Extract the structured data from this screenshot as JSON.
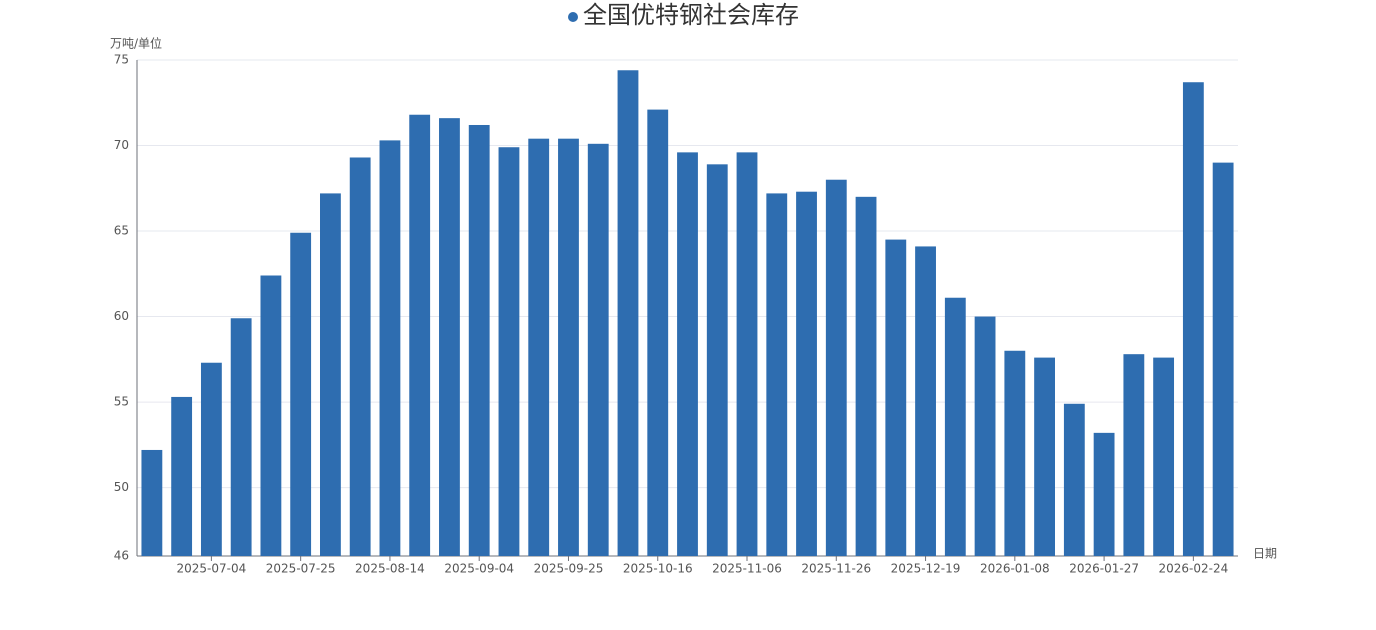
{
  "chart_data": {
    "type": "bar",
    "y_label": "万吨/单位",
    "x_label": "日期",
    "categories": [
      null,
      null,
      "2025-07-04",
      null,
      null,
      "2025-07-25",
      null,
      null,
      "2025-08-14",
      null,
      null,
      "2025-09-04",
      null,
      null,
      "2025-09-25",
      null,
      null,
      "2025-10-16",
      null,
      null,
      "2025-11-06",
      null,
      null,
      "2025-11-26",
      null,
      null,
      "2025-12-19",
      null,
      null,
      "2026-01-08",
      null,
      null,
      "2026-01-27",
      null,
      null,
      "2026-02-24",
      null
    ],
    "series": [
      {
        "name": "全国优特钢社会库存",
        "color": "#2e6db0",
        "values": [
          52.2,
          55.3,
          57.3,
          59.9,
          62.4,
          64.9,
          67.2,
          69.3,
          70.3,
          71.8,
          71.6,
          71.2,
          69.9,
          70.4,
          70.4,
          70.1,
          74.4,
          72.1,
          69.6,
          68.9,
          69.6,
          67.2,
          67.3,
          68.0,
          67.0,
          64.5,
          64.1,
          61.1,
          60.0,
          58.0,
          57.6,
          54.9,
          53.2,
          57.8,
          57.6,
          73.7,
          69.0
        ]
      }
    ],
    "ylim": [
      46,
      75
    ],
    "yticks": [
      46,
      50,
      55,
      60,
      65,
      70,
      75
    ],
    "grid": true
  }
}
